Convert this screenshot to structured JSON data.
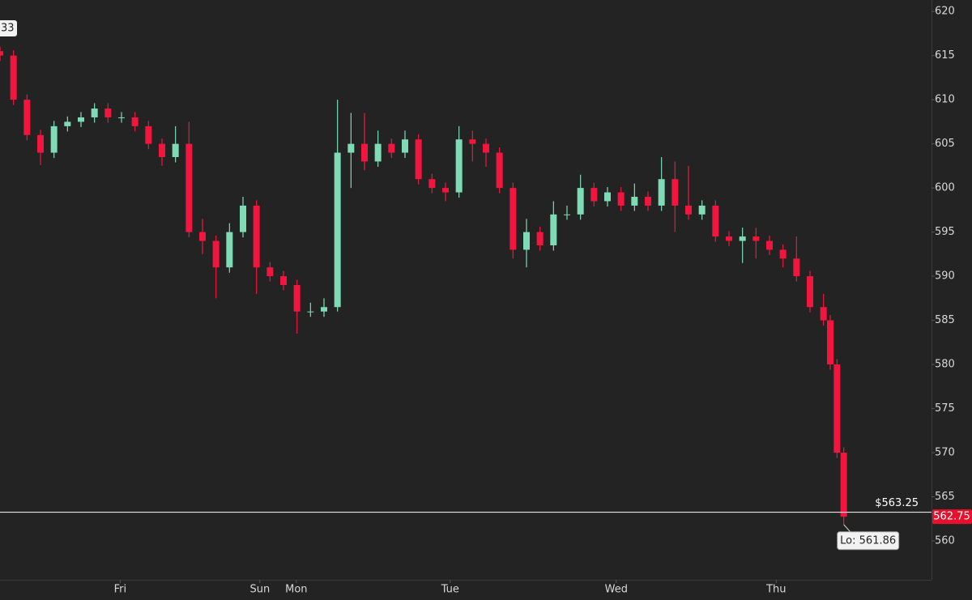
{
  "chart_data": {
    "type": "candlestick",
    "corner_label": "33",
    "up_color": "#7fdbb6",
    "down_color": "#f2163f",
    "x": [
      0,
      2,
      4,
      6,
      8,
      10,
      12,
      14,
      16,
      18,
      20,
      22,
      24,
      26,
      28,
      30,
      32,
      34,
      36,
      38,
      40,
      42,
      44,
      46,
      48,
      50,
      52,
      54,
      56,
      58,
      60,
      62,
      64,
      66,
      68,
      70,
      72,
      74,
      76,
      78,
      80,
      82,
      84,
      86,
      88,
      90,
      92,
      94,
      96,
      98,
      100,
      102,
      104,
      106,
      108,
      110,
      112,
      114,
      116,
      118,
      120,
      122,
      123,
      124,
      125
    ],
    "open": [
      615.5,
      615,
      610,
      606,
      604,
      607,
      607.5,
      608,
      609,
      608,
      608,
      607,
      605,
      603.5,
      605,
      595,
      594,
      591,
      595,
      598,
      591,
      590,
      589,
      586,
      586,
      586.5,
      604,
      605,
      603,
      605,
      604,
      605.5,
      601,
      600,
      599.5,
      605.5,
      605,
      604,
      600,
      593,
      595,
      593.5,
      597,
      597,
      600,
      598.5,
      599.5,
      598,
      599,
      598,
      601,
      598,
      597,
      598,
      594.5,
      594,
      594.5,
      594,
      593,
      592,
      590,
      586.5,
      585,
      580,
      570
    ],
    "high": [
      616,
      615.6,
      610.6,
      606.6,
      607.6,
      608.1,
      608.6,
      609.6,
      609.6,
      608.6,
      608.6,
      607.6,
      605.6,
      607,
      607.5,
      596.5,
      594.6,
      596,
      599,
      598.6,
      591.6,
      590.6,
      589.6,
      587,
      587.5,
      610,
      608.5,
      608.5,
      606.5,
      605.6,
      606.5,
      606.1,
      601.6,
      600.6,
      607,
      606.5,
      605.6,
      604.6,
      600.6,
      596.5,
      595.6,
      598.5,
      598,
      601.5,
      600.6,
      600.1,
      600.1,
      600.5,
      599.6,
      603.5,
      603,
      602.5,
      598.6,
      598.6,
      595.1,
      595.5,
      595.5,
      594.6,
      593.6,
      594.5,
      590.6,
      588,
      585.6,
      580.6,
      570.6
    ],
    "low": [
      614.4,
      609.4,
      605.4,
      602.6,
      603.4,
      606.4,
      606.9,
      607.4,
      607.4,
      607.4,
      606.4,
      604.4,
      602.5,
      602.9,
      594.4,
      592.5,
      587.5,
      590.4,
      594.4,
      588,
      589.4,
      588.4,
      583.5,
      585.4,
      585.4,
      586,
      600,
      602,
      602.4,
      603.4,
      603.4,
      600.4,
      599.4,
      598.5,
      598.9,
      603,
      602.4,
      599.4,
      592,
      591,
      592.9,
      592.9,
      596.4,
      596.4,
      597.9,
      597.9,
      597.4,
      597.4,
      597.4,
      597.4,
      595,
      596.4,
      596.4,
      593.9,
      593.4,
      591.5,
      592,
      592.4,
      591,
      589.4,
      585.9,
      584.4,
      579.4,
      569.4,
      561.86
    ],
    "close": [
      615,
      610,
      606,
      604,
      607,
      607.5,
      608,
      609,
      608,
      608,
      607,
      605,
      603.5,
      605,
      595,
      594,
      591,
      595,
      598,
      591,
      590,
      589,
      586,
      586,
      586.5,
      604,
      605,
      603,
      605,
      604,
      605.5,
      601,
      600,
      599.5,
      605.5,
      605,
      604,
      600,
      593,
      595,
      593.5,
      597,
      597,
      600,
      598.5,
      599.5,
      598,
      599,
      598,
      601,
      598,
      597,
      598,
      594.5,
      594,
      594.5,
      594,
      593,
      592,
      590,
      586.5,
      585,
      580,
      570,
      562.75
    ],
    "xlim": [
      0,
      138
    ],
    "xticks": [
      {
        "value": 17.8,
        "label": "Fri"
      },
      {
        "value": 38.5,
        "label": "Sun"
      },
      {
        "value": 43.9,
        "label": "Mon"
      },
      {
        "value": 66.7,
        "label": "Tue"
      },
      {
        "value": 91.3,
        "label": "Wed"
      },
      {
        "value": 115,
        "label": "Thu"
      }
    ],
    "ylim": [
      555.6,
      621.3
    ],
    "yticks": [
      560,
      565,
      570,
      575,
      580,
      585,
      590,
      595,
      600,
      605,
      610,
      615,
      620
    ],
    "price_line": {
      "value": 563.25,
      "label": "$563.25"
    },
    "last_price": 562.75,
    "low_label": {
      "value": 561.86,
      "label": "Lo: 561.86"
    }
  }
}
